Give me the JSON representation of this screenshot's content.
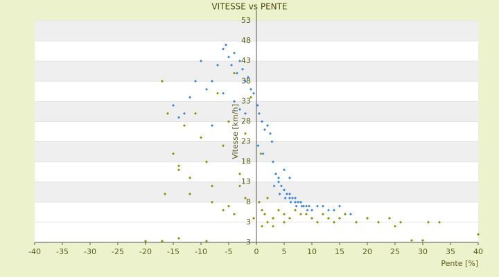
{
  "chart_data": {
    "type": "scatter",
    "title": "VITESSE vs PENTE",
    "x_label": "Pente [%]",
    "y_label": "Vitesse [km/h]",
    "xlim": [
      -40,
      40
    ],
    "xticks": [
      -40,
      -35,
      -30,
      -25,
      -20,
      -15,
      -10,
      -5,
      0,
      5,
      10,
      15,
      20,
      25,
      30,
      35,
      40
    ],
    "ylim": [
      -2,
      53
    ],
    "yticks": [
      3,
      8,
      13,
      18,
      23,
      28,
      33,
      38,
      43,
      48,
      53
    ],
    "y_axis_bottom_label": "3",
    "banded_grid": true,
    "series": [
      {
        "color": "#3b86d6",
        "x": [
          -6,
          -5.5,
          -5,
          -4.5,
          -4,
          -3.5,
          -3,
          -2.5,
          -2,
          -1.5,
          -1,
          -0.5,
          -7,
          -8,
          -9,
          -10,
          -11,
          -12,
          -13,
          -14,
          -15,
          -6,
          -4,
          -2,
          -8,
          -3,
          0.2,
          0.5,
          1,
          1.5,
          2,
          2.5,
          0.3,
          1.2,
          2.8,
          3,
          3.5,
          4,
          4.5,
          5,
          5.5,
          6,
          6.5,
          7,
          7.5,
          8,
          8.5,
          9,
          9.5,
          10,
          3.2,
          4.2,
          5.2,
          6.2,
          7.2,
          8.2,
          9.2,
          4,
          5,
          6,
          7,
          8,
          11,
          12,
          13,
          14,
          15,
          16,
          17,
          5,
          6
        ],
        "values": [
          46,
          47,
          44,
          42,
          45,
          40,
          43,
          41,
          38,
          39,
          36,
          35,
          42,
          38,
          36,
          43,
          38,
          34,
          30,
          29,
          32,
          35,
          33,
          30,
          27,
          31,
          32,
          30,
          28,
          26,
          27,
          25,
          22,
          20,
          23,
          18,
          15,
          13,
          12,
          11,
          10,
          9,
          9,
          8,
          8,
          8,
          7,
          7,
          7,
          6,
          12,
          10,
          9,
          8,
          7,
          7,
          6,
          14,
          11,
          10,
          9,
          8,
          7,
          7,
          6,
          6,
          7,
          5,
          5,
          16,
          14
        ]
      },
      {
        "color": "#8f8f00",
        "x": [
          -17,
          -16,
          -15,
          -14,
          -13,
          -12,
          -11,
          -10,
          -9,
          -8,
          -7,
          -6,
          -5,
          -4,
          -3,
          -2,
          -1,
          -16.5,
          -14,
          -12,
          -8,
          -6,
          -4,
          -2,
          0.5,
          1,
          1.5,
          2,
          3,
          4,
          5,
          6,
          7,
          8,
          9,
          10,
          11,
          12,
          13,
          14,
          15,
          16,
          18,
          20,
          22,
          24,
          26,
          1,
          2,
          3,
          5,
          -0.5,
          0.8,
          -20,
          -17,
          -14,
          -9,
          28,
          30,
          31,
          40,
          -5,
          -3,
          25,
          33
        ],
        "values": [
          38,
          30,
          20,
          17,
          27,
          14,
          30,
          24,
          18,
          12,
          35,
          22,
          28,
          40,
          12,
          25,
          34,
          10,
          16,
          10,
          8,
          6,
          5,
          9,
          8,
          6,
          5,
          9,
          4,
          6,
          5,
          4,
          6,
          5,
          5,
          4,
          3,
          5,
          4,
          3,
          4,
          5,
          3,
          4,
          3,
          4,
          3,
          2,
          3,
          2,
          3,
          4,
          20,
          -1.7,
          -1.7,
          -1,
          -1.7,
          -1.5,
          -1.5,
          3,
          0,
          7,
          15,
          2,
          3
        ]
      }
    ]
  }
}
